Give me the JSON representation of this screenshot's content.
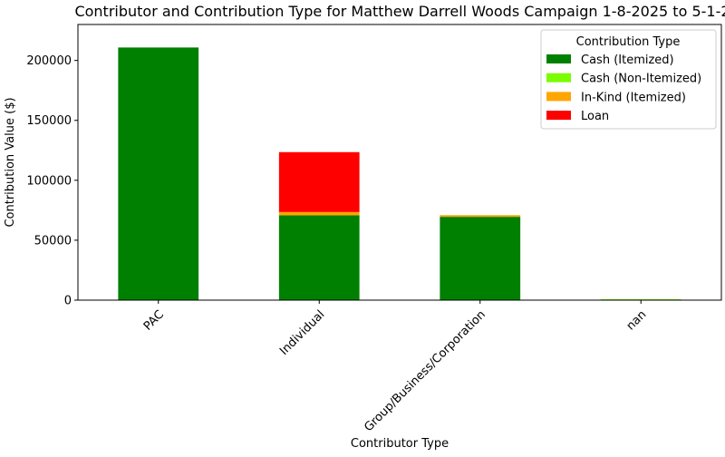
{
  "chart_data": {
    "type": "bar",
    "stacked": true,
    "title": "Contributor and Contribution Type for Matthew Darrell Woods Campaign 1-8-2025 to 5-1-2",
    "xlabel": "Contributor Type",
    "ylabel": "Contribution Value ($)",
    "categories": [
      "PAC",
      "Individual",
      "Group/Business/Corporation",
      "nan"
    ],
    "ylim": [
      0,
      230000
    ],
    "yticks": [
      0,
      50000,
      100000,
      150000,
      200000
    ],
    "ytick_labels": [
      "0",
      "50000",
      "100000",
      "150000",
      "200000"
    ],
    "grid": false,
    "legend": {
      "title": "Contribution Type",
      "placement": "top-right"
    },
    "series": [
      {
        "name": "Cash (Itemized)",
        "color": "#008000",
        "values": [
          210800,
          70800,
          69500,
          0
        ]
      },
      {
        "name": "Cash (Non-Itemized)",
        "color": "#7cfc00",
        "values": [
          0,
          0,
          0,
          600
        ]
      },
      {
        "name": "In-Kind (Itemized)",
        "color": "#ffa500",
        "values": [
          0,
          2700,
          1400,
          0
        ]
      },
      {
        "name": "Loan",
        "color": "#ff0000",
        "values": [
          0,
          50000,
          0,
          0
        ]
      }
    ]
  }
}
